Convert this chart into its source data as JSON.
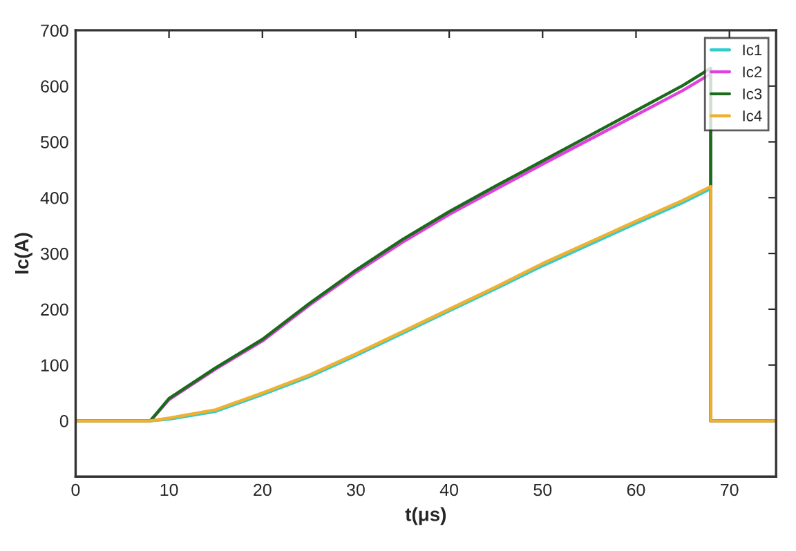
{
  "chart_data": {
    "type": "line",
    "xlabel": "t(μs)",
    "ylabel": "Ic(A)",
    "xlim": [
      0,
      75
    ],
    "xticks": [
      0,
      10,
      20,
      30,
      40,
      50,
      60,
      70
    ],
    "ylim": [
      -100,
      700
    ],
    "yticks": [
      0,
      100,
      200,
      300,
      400,
      500,
      600,
      700
    ],
    "grid": false,
    "legend": "top right",
    "marker": "none",
    "line_style": "solid",
    "x": [
      0,
      8,
      10,
      15,
      20,
      25,
      30,
      35,
      40,
      45,
      50,
      55,
      60,
      65,
      68,
      68,
      75
    ],
    "series": [
      {
        "name": "Ic1",
        "color": "#33cccc",
        "values": [
          0,
          0,
          3,
          17,
          47,
          79,
          117,
          157,
          197,
          237,
          278,
          316,
          354,
          391,
          416,
          0,
          0
        ]
      },
      {
        "name": "Ic2",
        "color": "#e040e0",
        "values": [
          0,
          0,
          38,
          93,
          143,
          207,
          266,
          320,
          370,
          415,
          460,
          504,
          548,
          592,
          622,
          0,
          0
        ]
      },
      {
        "name": "Ic3",
        "color": "#1a6b1a",
        "values": [
          0,
          0,
          40,
          95,
          146,
          210,
          270,
          325,
          375,
          421,
          466,
          511,
          556,
          601,
          632,
          0,
          0
        ]
      },
      {
        "name": "Ic4",
        "color": "#f0b030",
        "values": [
          0,
          0,
          5,
          20,
          50,
          82,
          120,
          160,
          200,
          240,
          282,
          320,
          358,
          395,
          420,
          0,
          0
        ]
      }
    ]
  }
}
